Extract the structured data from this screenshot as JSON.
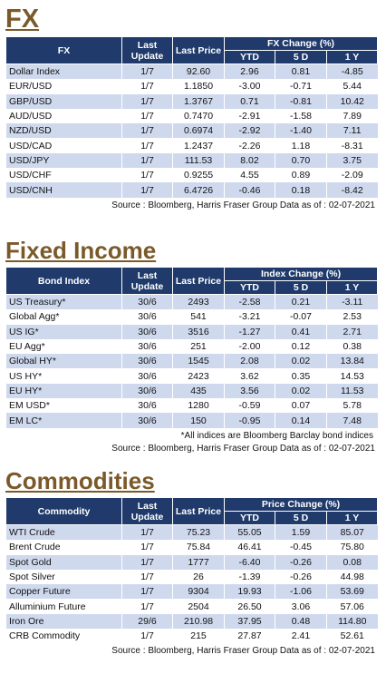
{
  "fx": {
    "title": "FX",
    "headers": {
      "name": "FX",
      "last_update": "Last Update",
      "last_price": "Last Price",
      "group": "FX Change (%)",
      "ytd": "YTD",
      "d5": "5 D",
      "y1": "1 Y"
    },
    "rows": [
      [
        "Dollar Index",
        "1/7",
        "92.60",
        "2.96",
        "0.81",
        "-4.85"
      ],
      [
        "EUR/USD",
        "1/7",
        "1.1850",
        "-3.00",
        "-0.71",
        "5.44"
      ],
      [
        "GBP/USD",
        "1/7",
        "1.3767",
        "0.71",
        "-0.81",
        "10.42"
      ],
      [
        "AUD/USD",
        "1/7",
        "0.7470",
        "-2.91",
        "-1.58",
        "7.89"
      ],
      [
        "NZD/USD",
        "1/7",
        "0.6974",
        "-2.92",
        "-1.40",
        "7.11"
      ],
      [
        "USD/CAD",
        "1/7",
        "1.2437",
        "-2.26",
        "1.18",
        "-8.31"
      ],
      [
        "USD/JPY",
        "1/7",
        "111.53",
        "8.02",
        "0.70",
        "3.75"
      ],
      [
        "USD/CHF",
        "1/7",
        "0.9255",
        "4.55",
        "0.89",
        "-2.09"
      ],
      [
        "USD/CNH",
        "1/7",
        "6.4726",
        "-0.46",
        "0.18",
        "-8.42"
      ]
    ],
    "source": "Source : Bloomberg, Harris Fraser Group Data as of : 02-07-2021"
  },
  "fixed_income": {
    "title": "Fixed Income",
    "headers": {
      "name": "Bond Index",
      "last_update": "Last Update",
      "last_price": "Last Price",
      "group": "Index Change (%)",
      "ytd": "YTD",
      "d5": "5 D",
      "y1": "1 Y"
    },
    "rows": [
      [
        "US Treasury*",
        "30/6",
        "2493",
        "-2.58",
        "0.21",
        "-3.11"
      ],
      [
        "Global Agg*",
        "30/6",
        "541",
        "-3.21",
        "-0.07",
        "2.53"
      ],
      [
        "US IG*",
        "30/6",
        "3516",
        "-1.27",
        "0.41",
        "2.71"
      ],
      [
        "EU Agg*",
        "30/6",
        "251",
        "-2.00",
        "0.12",
        "0.38"
      ],
      [
        "Global HY*",
        "30/6",
        "1545",
        "2.08",
        "0.02",
        "13.84"
      ],
      [
        "US HY*",
        "30/6",
        "2423",
        "3.62",
        "0.35",
        "14.53"
      ],
      [
        "EU HY*",
        "30/6",
        "435",
        "3.56",
        "0.02",
        "11.53"
      ],
      [
        "EM USD*",
        "30/6",
        "1280",
        "-0.59",
        "0.07",
        "5.78"
      ],
      [
        "EM LC*",
        "30/6",
        "150",
        "-0.95",
        "0.14",
        "7.48"
      ]
    ],
    "note": "*All indices are Bloomberg Barclay bond indices",
    "source": "Source : Bloomberg, Harris Fraser Group Data as of : 02-07-2021"
  },
  "commodities": {
    "title": "Commodities",
    "headers": {
      "name": "Commodity",
      "last_update": "Last Update",
      "last_price": "Last Price",
      "group": "Price Change (%)",
      "ytd": "YTD",
      "d5": "5 D",
      "y1": "1 Y"
    },
    "rows": [
      [
        "WTI Crude",
        "1/7",
        "75.23",
        "55.05",
        "1.59",
        "85.07"
      ],
      [
        "Brent Crude",
        "1/7",
        "75.84",
        "46.41",
        "-0.45",
        "75.80"
      ],
      [
        "Spot Gold",
        "1/7",
        "1777",
        "-6.40",
        "-0.26",
        "0.08"
      ],
      [
        "Spot Silver",
        "1/7",
        "26",
        "-1.39",
        "-0.26",
        "44.98"
      ],
      [
        "Copper Future",
        "1/7",
        "9304",
        "19.93",
        "-1.06",
        "53.69"
      ],
      [
        "Alluminium Future",
        "1/7",
        "2504",
        "26.50",
        "3.06",
        "57.06"
      ],
      [
        "Iron Ore",
        "29/6",
        "210.98",
        "37.95",
        "0.48",
        "114.80"
      ],
      [
        "CRB Commodity",
        "1/7",
        "215",
        "27.87",
        "2.41",
        "52.61"
      ]
    ],
    "source": "Source : Bloomberg, Harris Fraser Group Data as of : 02-07-2021"
  },
  "colors": {
    "title": "#7a5a2a",
    "header_bg": "#1f3a6b",
    "stripe": "#cfd9ee"
  }
}
